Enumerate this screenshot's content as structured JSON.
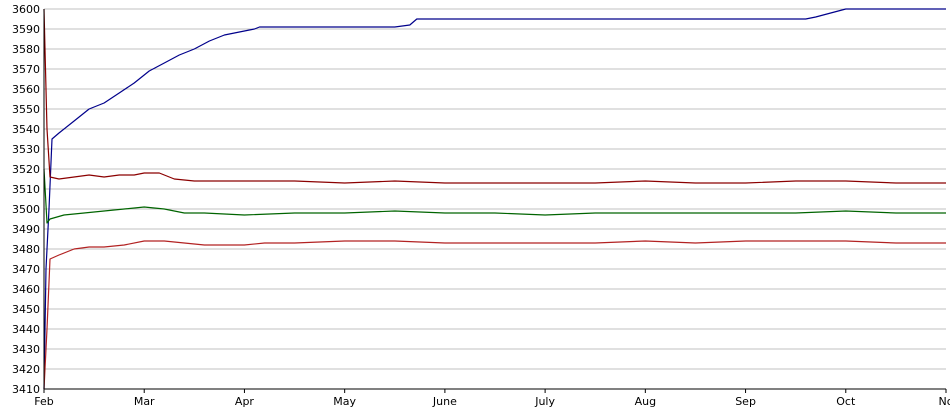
{
  "chart_data": {
    "type": "line",
    "title": "",
    "xlabel": "",
    "ylabel": "",
    "ylim": [
      3410,
      3600
    ],
    "y_ticks": [
      3410,
      3420,
      3430,
      3440,
      3450,
      3460,
      3470,
      3480,
      3490,
      3500,
      3510,
      3520,
      3530,
      3540,
      3550,
      3560,
      3570,
      3580,
      3590,
      3600
    ],
    "x_ticks": [
      "Feb",
      "Mar",
      "Apr",
      "May",
      "June",
      "July",
      "Aug",
      "Sep",
      "Oct",
      "No"
    ],
    "x_tick_positions": [
      0,
      1,
      2,
      3,
      4,
      5,
      6,
      7,
      8,
      9
    ],
    "xlim": [
      0,
      9
    ],
    "grid": "horizontal",
    "colors": {
      "grid": "#c0c0c0",
      "axis": "#000000",
      "background": "#ffffff"
    },
    "series": [
      {
        "color": "#00008b",
        "points": [
          [
            0,
            3410
          ],
          [
            0.02,
            3470
          ],
          [
            0.05,
            3500
          ],
          [
            0.08,
            3535
          ],
          [
            0.15,
            3538
          ],
          [
            0.3,
            3544
          ],
          [
            0.45,
            3550
          ],
          [
            0.6,
            3553
          ],
          [
            0.75,
            3558
          ],
          [
            0.9,
            3563
          ],
          [
            1.05,
            3569
          ],
          [
            1.2,
            3573
          ],
          [
            1.35,
            3577
          ],
          [
            1.5,
            3580
          ],
          [
            1.65,
            3584
          ],
          [
            1.8,
            3587
          ],
          [
            2.0,
            3589
          ],
          [
            2.1,
            3590
          ],
          [
            2.15,
            3591
          ],
          [
            2.5,
            3591
          ],
          [
            3.0,
            3591
          ],
          [
            3.5,
            3591
          ],
          [
            3.65,
            3592
          ],
          [
            3.72,
            3595
          ],
          [
            4.0,
            3595
          ],
          [
            5.0,
            3595
          ],
          [
            6.0,
            3595
          ],
          [
            7.0,
            3595
          ],
          [
            7.6,
            3595
          ],
          [
            7.7,
            3596
          ],
          [
            7.85,
            3598
          ],
          [
            8.0,
            3600
          ],
          [
            9.0,
            3600
          ]
        ]
      },
      {
        "color": "#8b0000",
        "points": [
          [
            0,
            3600
          ],
          [
            0.03,
            3540
          ],
          [
            0.06,
            3516
          ],
          [
            0.15,
            3515
          ],
          [
            0.3,
            3516
          ],
          [
            0.45,
            3517
          ],
          [
            0.6,
            3516
          ],
          [
            0.75,
            3517
          ],
          [
            0.9,
            3517
          ],
          [
            1.0,
            3518
          ],
          [
            1.15,
            3518
          ],
          [
            1.3,
            3515
          ],
          [
            1.5,
            3514
          ],
          [
            2.0,
            3514
          ],
          [
            2.5,
            3514
          ],
          [
            3.0,
            3513
          ],
          [
            3.5,
            3514
          ],
          [
            4.0,
            3513
          ],
          [
            4.5,
            3513
          ],
          [
            5.0,
            3513
          ],
          [
            5.5,
            3513
          ],
          [
            6.0,
            3514
          ],
          [
            6.5,
            3513
          ],
          [
            7.0,
            3513
          ],
          [
            7.5,
            3514
          ],
          [
            8.0,
            3514
          ],
          [
            8.5,
            3513
          ],
          [
            9.0,
            3513
          ]
        ]
      },
      {
        "color": "#006400",
        "points": [
          [
            0,
            3520
          ],
          [
            0.03,
            3493
          ],
          [
            0.06,
            3495
          ],
          [
            0.2,
            3497
          ],
          [
            0.4,
            3498
          ],
          [
            0.6,
            3499
          ],
          [
            0.8,
            3500
          ],
          [
            1.0,
            3501
          ],
          [
            1.2,
            3500
          ],
          [
            1.4,
            3498
          ],
          [
            1.6,
            3498
          ],
          [
            2.0,
            3497
          ],
          [
            2.5,
            3498
          ],
          [
            3.0,
            3498
          ],
          [
            3.5,
            3499
          ],
          [
            4.0,
            3498
          ],
          [
            4.5,
            3498
          ],
          [
            5.0,
            3497
          ],
          [
            5.5,
            3498
          ],
          [
            6.0,
            3498
          ],
          [
            6.5,
            3498
          ],
          [
            7.0,
            3498
          ],
          [
            7.5,
            3498
          ],
          [
            8.0,
            3499
          ],
          [
            8.5,
            3498
          ],
          [
            9.0,
            3498
          ]
        ]
      },
      {
        "color": "#b22222",
        "points": [
          [
            0,
            3410
          ],
          [
            0.03,
            3440
          ],
          [
            0.06,
            3475
          ],
          [
            0.15,
            3477
          ],
          [
            0.3,
            3480
          ],
          [
            0.45,
            3481
          ],
          [
            0.6,
            3481
          ],
          [
            0.8,
            3482
          ],
          [
            1.0,
            3484
          ],
          [
            1.2,
            3484
          ],
          [
            1.4,
            3483
          ],
          [
            1.6,
            3482
          ],
          [
            2.0,
            3482
          ],
          [
            2.2,
            3483
          ],
          [
            2.5,
            3483
          ],
          [
            3.0,
            3484
          ],
          [
            3.5,
            3484
          ],
          [
            4.0,
            3483
          ],
          [
            4.5,
            3483
          ],
          [
            5.0,
            3483
          ],
          [
            5.5,
            3483
          ],
          [
            6.0,
            3484
          ],
          [
            6.5,
            3483
          ],
          [
            7.0,
            3484
          ],
          [
            7.5,
            3484
          ],
          [
            8.0,
            3484
          ],
          [
            8.5,
            3483
          ],
          [
            9.0,
            3483
          ]
        ]
      }
    ]
  }
}
